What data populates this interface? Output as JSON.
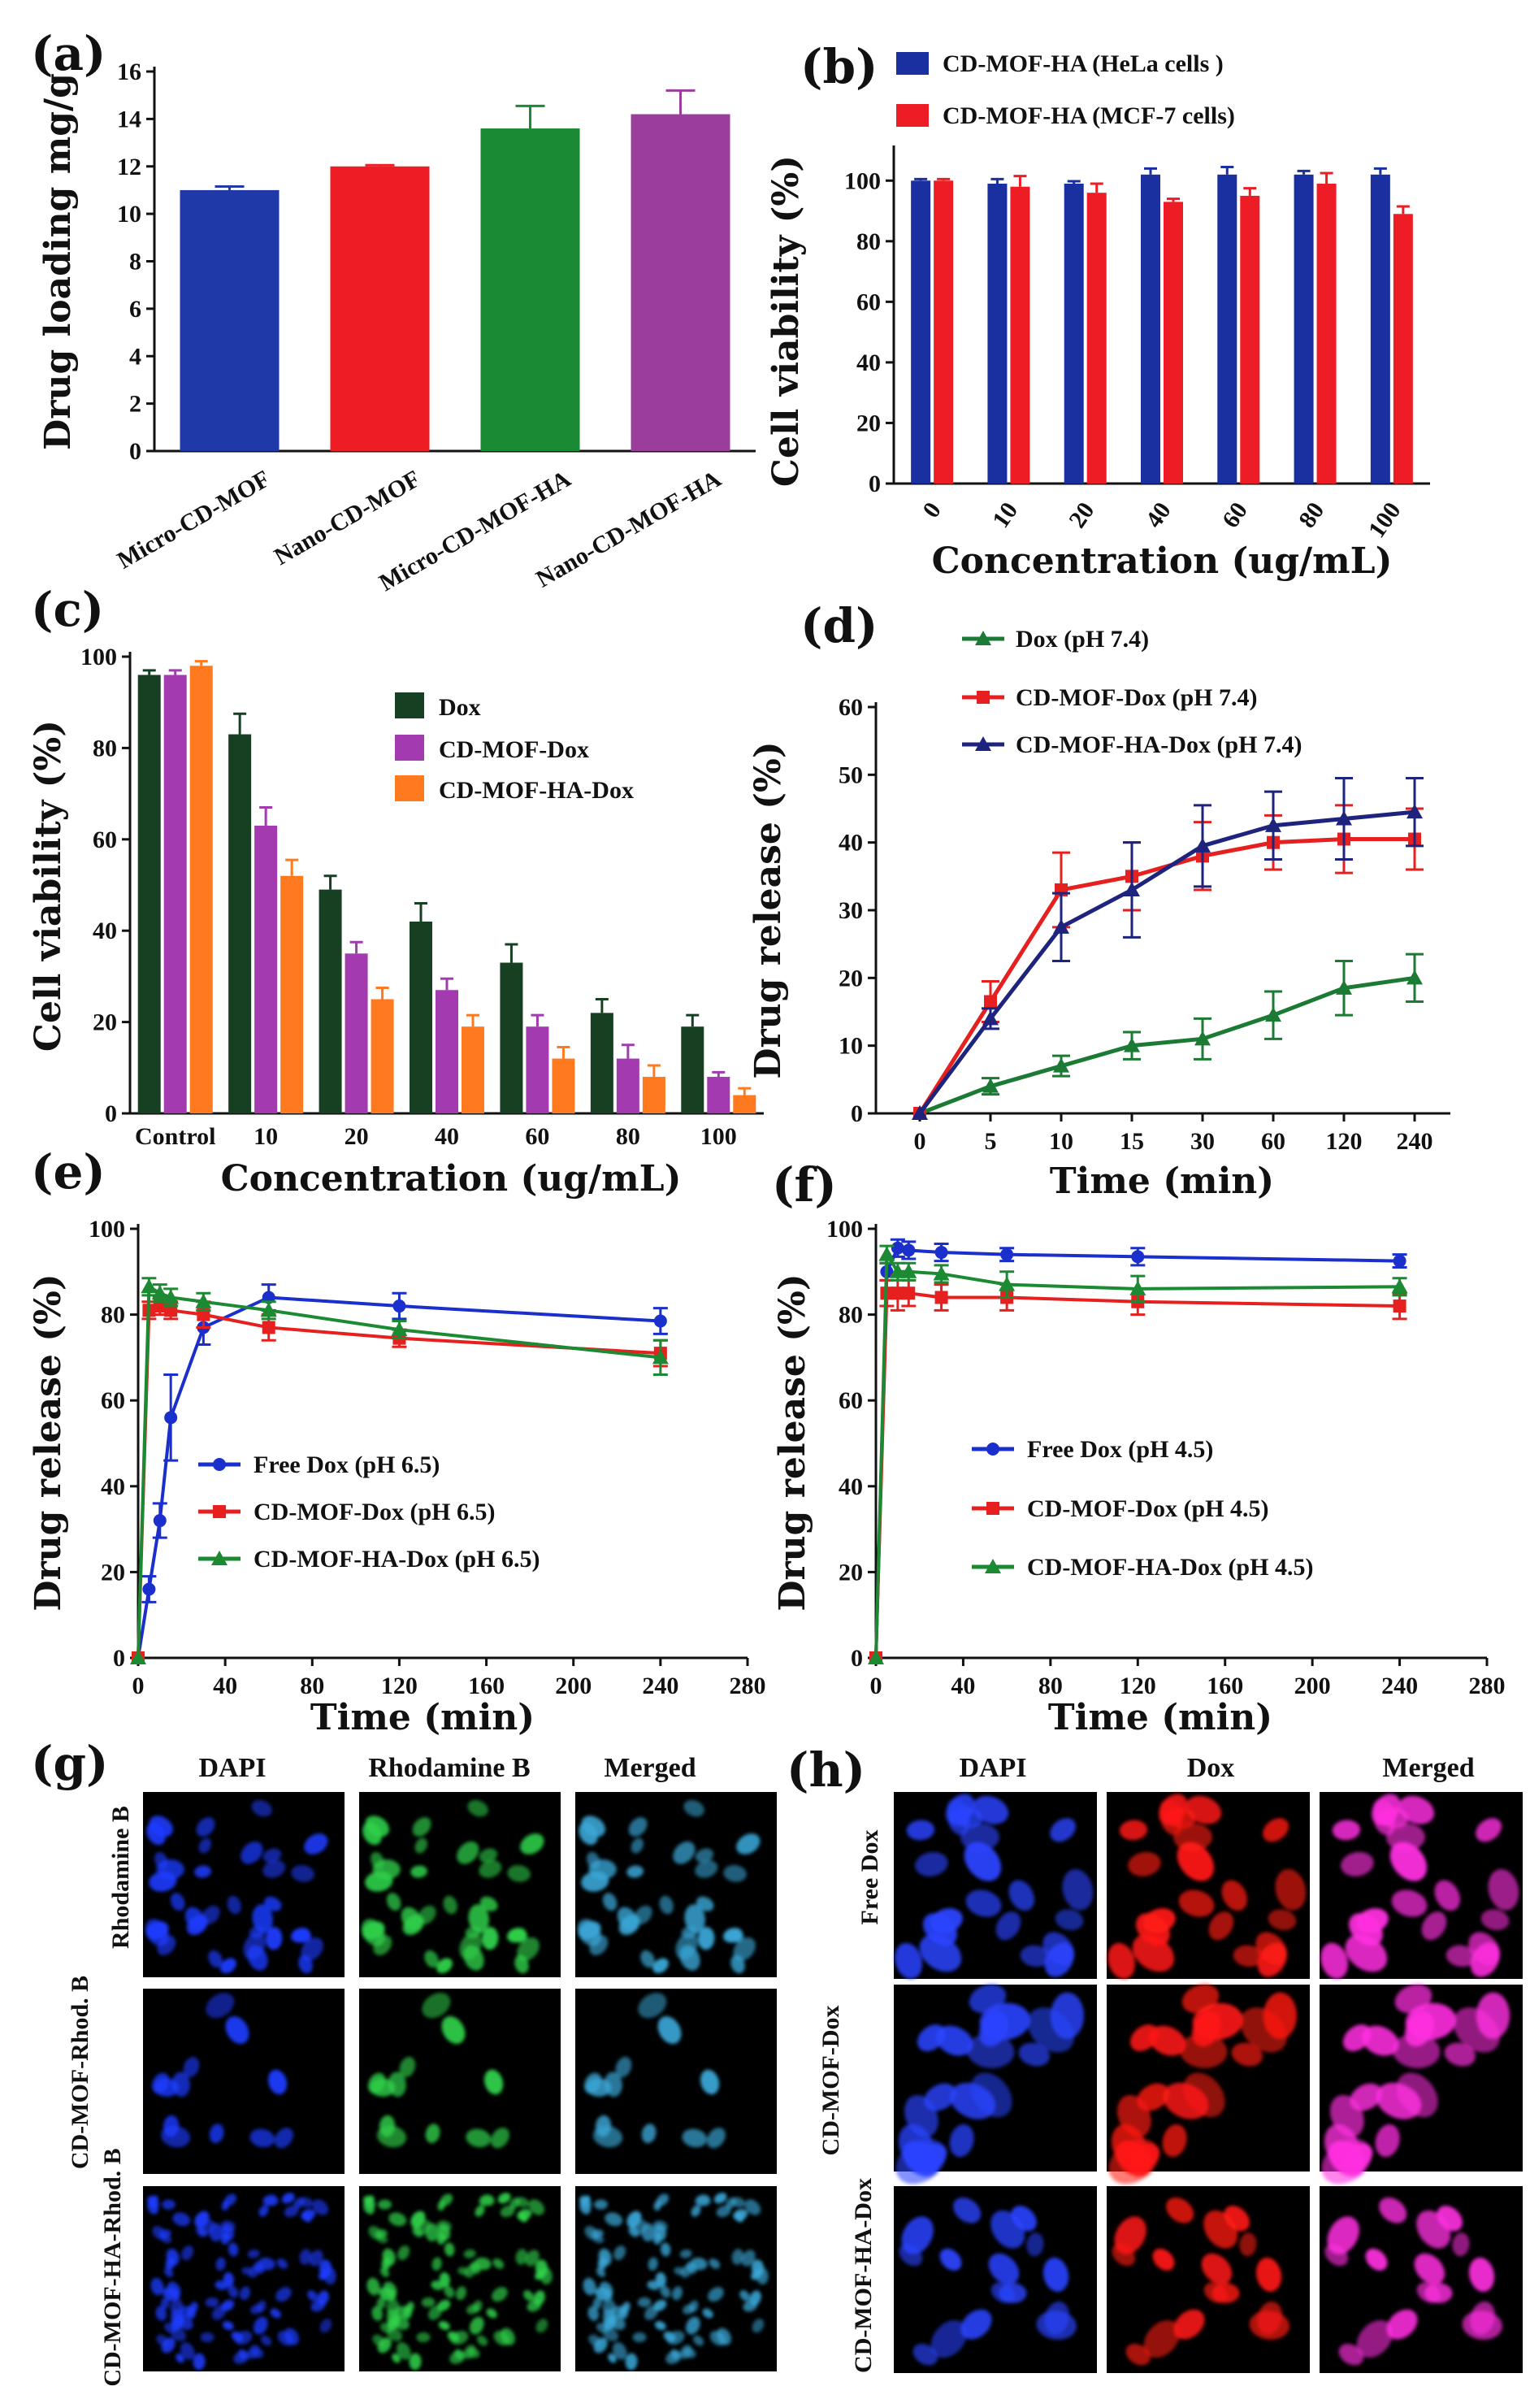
{
  "chart_data": [
    {
      "panel": "(a)",
      "type": "bar",
      "title": "",
      "xlabel": "",
      "ylabel": "Drug loading mg/g",
      "ylim": [
        0,
        16
      ],
      "yticks": [
        0,
        2,
        4,
        6,
        8,
        10,
        12,
        14,
        16
      ],
      "categories": [
        "Micro-CD-MOF",
        "Nano-CD-MOF",
        "Micro-CD-MOF-HA",
        "Nano-CD-MOF-HA"
      ],
      "values": [
        11.0,
        12.0,
        13.6,
        14.2
      ],
      "errors": [
        0.15,
        0.05,
        0.95,
        1.0
      ],
      "colors": [
        "#1f3aa8",
        "#ee1c24",
        "#1a8a35",
        "#9b3d9c"
      ]
    },
    {
      "panel": "(b)",
      "type": "bar",
      "title": "",
      "xlabel": "Concentration (ug/mL)",
      "ylabel": "Cell viability (%)",
      "ylim": [
        0,
        110
      ],
      "yticks": [
        0,
        20,
        40,
        60,
        80,
        100
      ],
      "categories": [
        "0",
        "10",
        "20",
        "40",
        "60",
        "80",
        "100"
      ],
      "legend_position": "top",
      "series": [
        {
          "name": "CD-MOF-HA (HeLa cells )",
          "color": "#1a2fa0",
          "values": [
            100,
            99,
            99,
            102,
            102,
            102,
            102
          ],
          "errors": [
            0.5,
            1.5,
            0.8,
            2.0,
            2.5,
            1.2,
            2.0
          ]
        },
        {
          "name": "CD-MOF-HA (MCF-7 cells)",
          "color": "#ee1c24",
          "values": [
            100,
            98,
            96,
            93,
            95,
            99,
            89
          ],
          "errors": [
            0.5,
            3.5,
            3.0,
            1.0,
            2.5,
            3.5,
            2.5
          ]
        }
      ]
    },
    {
      "panel": "(c)",
      "type": "bar",
      "title": "",
      "xlabel": "Concentration (ug/mL)",
      "ylabel": "Cell viability (%)",
      "ylim": [
        0,
        100
      ],
      "yticks": [
        0,
        20,
        40,
        60,
        80,
        100
      ],
      "categories": [
        "Control",
        "10",
        "20",
        "40",
        "60",
        "80",
        "100"
      ],
      "legend_position": "middle-right",
      "series": [
        {
          "name": "Dox",
          "color": "#173f22",
          "values": [
            96,
            83,
            49,
            42,
            33,
            22,
            19
          ],
          "errors": [
            1.0,
            4.5,
            3.0,
            4.0,
            4.0,
            3.0,
            2.5
          ]
        },
        {
          "name": "CD-MOF-Dox",
          "color": "#a33ab0",
          "values": [
            96,
            63,
            35,
            27,
            19,
            12,
            8
          ],
          "errors": [
            1.0,
            4.0,
            2.5,
            2.5,
            2.5,
            3.0,
            1.0
          ]
        },
        {
          "name": "CD-MOF-HA-Dox",
          "color": "#ff7a1f",
          "values": [
            98,
            52,
            25,
            19,
            12,
            8,
            4
          ],
          "errors": [
            1.0,
            3.5,
            2.5,
            2.5,
            2.5,
            2.5,
            1.5
          ]
        }
      ]
    },
    {
      "panel": "(d)",
      "type": "line",
      "title": "",
      "xlabel": "Time (min)",
      "ylabel": "Drug release (%)",
      "ylim": [
        0,
        60
      ],
      "yticks": [
        0,
        10,
        20,
        30,
        40,
        50,
        60
      ],
      "categories": [
        "0",
        "5",
        "10",
        "15",
        "30",
        "60",
        "120",
        "240"
      ],
      "legend_position": "top",
      "series": [
        {
          "name": "Dox (pH 7.4)",
          "color": "#1b7a33",
          "marker": "triangle",
          "values": [
            0,
            4,
            7,
            10,
            11,
            14.5,
            18.5,
            20
          ],
          "errors": [
            0,
            1.2,
            1.5,
            2.0,
            3.0,
            3.5,
            4.0,
            3.5
          ]
        },
        {
          "name": "CD-MOF-Dox (pH 7.4)",
          "color": "#e5201f",
          "marker": "square",
          "values": [
            0,
            16.5,
            33,
            35,
            38,
            40,
            40.5,
            40.5
          ],
          "errors": [
            0,
            3.0,
            5.5,
            5.0,
            5.0,
            4.0,
            5.0,
            4.5
          ]
        },
        {
          "name": "CD-MOF-HA-Dox (pH 7.4)",
          "color": "#1e237e",
          "marker": "triangle",
          "values": [
            0,
            14,
            27.5,
            33,
            39.5,
            42.5,
            43.5,
            44.5
          ],
          "errors": [
            0,
            1.5,
            5.0,
            7.0,
            6.0,
            5.0,
            6.0,
            5.0
          ]
        }
      ]
    },
    {
      "panel": "(e)",
      "type": "line",
      "title": "",
      "xlabel": "Time (min)",
      "ylabel": "Drug release (%)",
      "xlim": [
        0,
        280
      ],
      "xticks": [
        0,
        40,
        80,
        120,
        160,
        200,
        240,
        280
      ],
      "ylim": [
        0,
        100
      ],
      "yticks": [
        0,
        20,
        40,
        60,
        80,
        100
      ],
      "legend_position": "bottom-left",
      "series": [
        {
          "name": "Free Dox (pH 6.5)",
          "color": "#1a2fcc",
          "marker": "circle",
          "x": [
            0,
            5,
            10,
            15,
            30,
            60,
            120,
            240
          ],
          "y": [
            0,
            16,
            32,
            56,
            77,
            84,
            82,
            78.5
          ],
          "errors": [
            0,
            3,
            4,
            10,
            4,
            3,
            3,
            3
          ]
        },
        {
          "name": "CD-MOF-Dox (pH 6.5)",
          "color": "#e5201f",
          "marker": "square",
          "x": [
            0,
            5,
            10,
            15,
            30,
            60,
            120,
            240
          ],
          "y": [
            0,
            81,
            82,
            81,
            80,
            77,
            74.5,
            71
          ],
          "errors": [
            0,
            2,
            2,
            2,
            3,
            3,
            2,
            3
          ]
        },
        {
          "name": "CD-MOF-HA-Dox (pH 6.5)",
          "color": "#1b8a33",
          "marker": "triangle",
          "x": [
            0,
            5,
            10,
            15,
            30,
            60,
            120,
            240
          ],
          "y": [
            0,
            86.5,
            85,
            84,
            83,
            81,
            76.5,
            70
          ],
          "errors": [
            0,
            2,
            2,
            2,
            2,
            2,
            2,
            4
          ]
        }
      ]
    },
    {
      "panel": "(f)",
      "type": "line",
      "title": "",
      "xlabel": "Time (min)",
      "ylabel": "Drug release (%)",
      "xlim": [
        0,
        280
      ],
      "xticks": [
        0,
        40,
        80,
        120,
        160,
        200,
        240,
        280
      ],
      "ylim": [
        0,
        100
      ],
      "yticks": [
        0,
        20,
        40,
        60,
        80,
        100
      ],
      "legend_position": "bottom-center",
      "series": [
        {
          "name": "Free Dox (pH 4.5)",
          "color": "#1a2fcc",
          "marker": "circle",
          "x": [
            0,
            5,
            10,
            15,
            30,
            60,
            120,
            240
          ],
          "y": [
            0,
            90,
            95.5,
            95,
            94.5,
            94,
            93.5,
            92.5
          ],
          "errors": [
            0,
            2,
            2,
            2,
            2,
            1.5,
            2,
            1.5
          ]
        },
        {
          "name": "CD-MOF-Dox (pH 4.5)",
          "color": "#e5201f",
          "marker": "square",
          "x": [
            0,
            5,
            10,
            15,
            30,
            60,
            120,
            240
          ],
          "y": [
            0,
            85,
            85,
            85,
            84,
            84,
            83,
            82
          ],
          "errors": [
            0,
            3,
            4,
            3,
            3,
            3,
            3,
            3
          ]
        },
        {
          "name": "CD-MOF-HA-Dox (pH 4.5)",
          "color": "#1b8a33",
          "marker": "triangle",
          "x": [
            0,
            5,
            10,
            15,
            30,
            60,
            120,
            240
          ],
          "y": [
            0,
            94,
            90,
            90,
            89.5,
            87,
            86,
            86.5
          ],
          "errors": [
            0,
            2,
            2,
            2,
            2,
            3,
            3,
            2
          ]
        }
      ]
    }
  ],
  "panel_labels": {
    "a": "(a)",
    "b": "(b)",
    "c": "(c)",
    "d": "(d)",
    "e": "(e)",
    "f": "(f)",
    "g": "(g)",
    "h": "(h)"
  },
  "image_panels": {
    "g": {
      "columns": [
        "DAPI",
        "Rhodamine B",
        "Merged"
      ],
      "rows": [
        "Rhodamine B",
        "CD-MOF-Rhod. B",
        "CD-MOF-HA-Rhod. B"
      ],
      "column_colors": [
        "#1c3cff",
        "#2fd04a",
        "#3aa6d6"
      ]
    },
    "h": {
      "columns": [
        "DAPI",
        "Dox",
        "Merged"
      ],
      "rows": [
        "Free Dox",
        "CD-MOF-Dox",
        "CD-MOF-HA-Dox"
      ],
      "column_colors": [
        "#2a44ff",
        "#ff1a14",
        "#ff2fe0"
      ]
    }
  }
}
